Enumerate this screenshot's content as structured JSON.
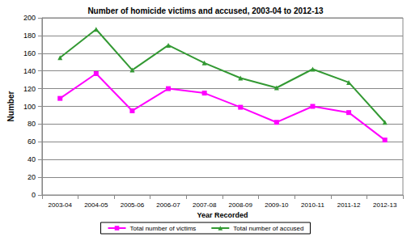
{
  "chart_data": {
    "type": "line",
    "title": "Number of homicide victims and accused, 2003-04 to 2012-13",
    "x_label": "Year Recorded",
    "y_label": "Number",
    "categories": [
      "2003-04",
      "2004-05",
      "2005-06",
      "2006-07",
      "2007-08",
      "2008-09",
      "2009-10",
      "2010-11",
      "2011-12",
      "2012-13"
    ],
    "series": [
      {
        "name": "Total number of victims",
        "color": "#ff00ff",
        "marker": "square",
        "values": [
          109,
          137,
          95,
          120,
          115,
          99,
          82,
          100,
          93,
          62
        ]
      },
      {
        "name": "Total number of accused",
        "color": "#339933",
        "marker": "triangle",
        "values": [
          155,
          187,
          141,
          169,
          149,
          132,
          121,
          142,
          127,
          82
        ]
      }
    ],
    "ylim": [
      0,
      200
    ],
    "yticks": [
      0,
      20,
      40,
      60,
      80,
      100,
      120,
      140,
      160,
      180,
      200
    ],
    "grid": true,
    "legend": "bottom"
  }
}
